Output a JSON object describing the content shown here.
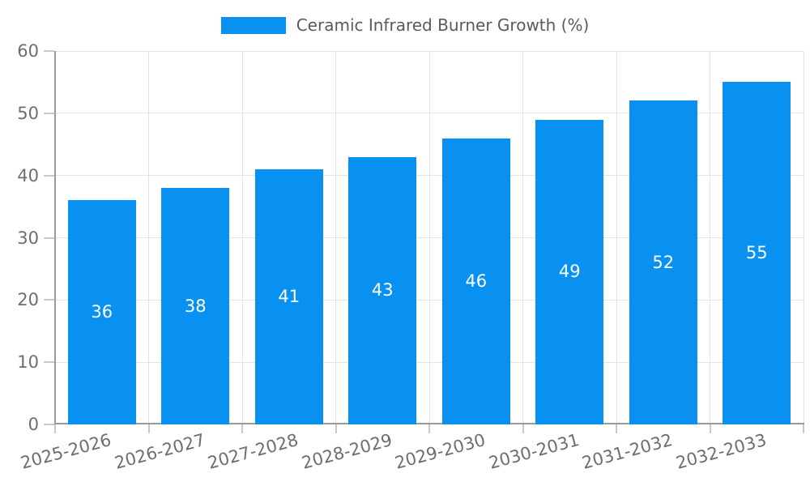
{
  "colors": {
    "bar": "#0991f2",
    "bar_label": "#ffffff",
    "axis": "#9a9a9a",
    "grid": "#e3e3e3",
    "tick": "#c8c8c8",
    "tick_text": "#6e6e6e",
    "legend_text": "#5a5a5a",
    "background": "#ffffff"
  },
  "legend": {
    "label": "Ceramic Infrared Burner Growth (%)"
  },
  "chart_data": {
    "type": "bar",
    "title": "",
    "legend_entries": [
      "Ceramic Infrared Burner Growth (%)"
    ],
    "legend_position": "top-center",
    "categories": [
      "2025-2026",
      "2026-2027",
      "2027-2028",
      "2028-2029",
      "2029-2030",
      "2030-2031",
      "2031-2032",
      "2032-2033"
    ],
    "values": [
      36,
      38,
      41,
      43,
      46,
      49,
      52,
      55
    ],
    "bar_value_labels": [
      "36",
      "38",
      "41",
      "43",
      "46",
      "49",
      "52",
      "55"
    ],
    "xlabel": "",
    "ylabel": "",
    "ylim": [
      0,
      60
    ],
    "yticks": [
      0,
      10,
      20,
      30,
      40,
      50,
      60
    ],
    "grid": true,
    "x_tick_rotation_deg": 15,
    "bar_labels_inside": true
  }
}
